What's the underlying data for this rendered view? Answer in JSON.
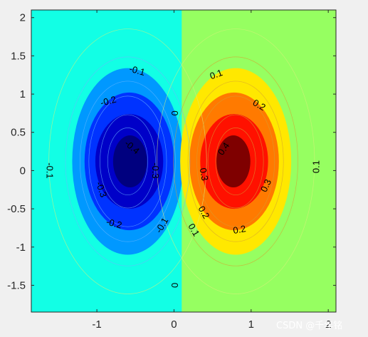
{
  "chart_data": {
    "type": "contourf",
    "title": "",
    "xlabel": "",
    "ylabel": "",
    "xlim": [
      -1.85,
      2.1
    ],
    "ylim": [
      -1.85,
      2.1
    ],
    "x_ticks": [
      "-1",
      "0",
      "1",
      "2"
    ],
    "y_ticks": [
      "2",
      "1.5",
      "1",
      "0.5",
      "0",
      "-0.5",
      "-1",
      "-1.5"
    ],
    "colormap": "jet",
    "levels": [
      -0.4,
      -0.3,
      -0.2,
      -0.1,
      0,
      0.1,
      0.2,
      0.3,
      0.4
    ],
    "level_colors": {
      "lt_-0.4": "#00007f",
      "-0.4_-0.3": "#0000c8",
      "-0.3_-0.2": "#0033ff",
      "-0.2_-0.1": "#0098ff",
      "-0.1_0": "#12ffe5",
      "0_0.1": "#96ff61",
      "0.1_0.2": "#ffe800",
      "0.2_0.3": "#ff7a00",
      "0.3_0.4": "#ff1100",
      "gt_0.4": "#7f0000"
    },
    "negative_lobe_center": [
      -0.6,
      0.12
    ],
    "positive_lobe_center": [
      0.8,
      0.12
    ],
    "zero_line_x": 0.1,
    "contour_labels": [
      {
        "text": "-0.1",
        "x": -0.48,
        "y": 1.3,
        "angle": 15
      },
      {
        "text": "-0.2",
        "x": -0.85,
        "y": 0.9,
        "angle": -15
      },
      {
        "text": "-0.4",
        "x": -0.55,
        "y": 0.3,
        "angle": 40
      },
      {
        "text": "-0.3",
        "x": -0.25,
        "y": 0.0,
        "angle": 90
      },
      {
        "text": "-0.1",
        "x": -1.62,
        "y": 0.0,
        "angle": 90
      },
      {
        "text": "-0.3",
        "x": -0.95,
        "y": -0.25,
        "angle": 70
      },
      {
        "text": "-0.2",
        "x": -0.78,
        "y": -0.7,
        "angle": 15
      },
      {
        "text": "-0.1",
        "x": -0.15,
        "y": -0.72,
        "angle": -60
      },
      {
        "text": "0",
        "x": 0.0,
        "y": 0.75,
        "angle": 90
      },
      {
        "text": "0",
        "x": 0.0,
        "y": -1.5,
        "angle": 90
      },
      {
        "text": "0.1",
        "x": 0.55,
        "y": 1.25,
        "angle": -20
      },
      {
        "text": "0.2",
        "x": 1.1,
        "y": 0.85,
        "angle": 30
      },
      {
        "text": "0.4",
        "x": 0.65,
        "y": 0.28,
        "angle": -55
      },
      {
        "text": "0.3",
        "x": 0.38,
        "y": -0.05,
        "angle": 80
      },
      {
        "text": "0.3",
        "x": 1.2,
        "y": -0.2,
        "angle": -65
      },
      {
        "text": "0.1",
        "x": 1.85,
        "y": 0.05,
        "angle": -90
      },
      {
        "text": "0.2",
        "x": 0.38,
        "y": -0.55,
        "angle": 60
      },
      {
        "text": "0.1",
        "x": 0.25,
        "y": -0.78,
        "angle": 60
      },
      {
        "text": "0.2",
        "x": 0.85,
        "y": -0.78,
        "angle": -10
      }
    ]
  },
  "watermark": "CSDN @千年铭"
}
